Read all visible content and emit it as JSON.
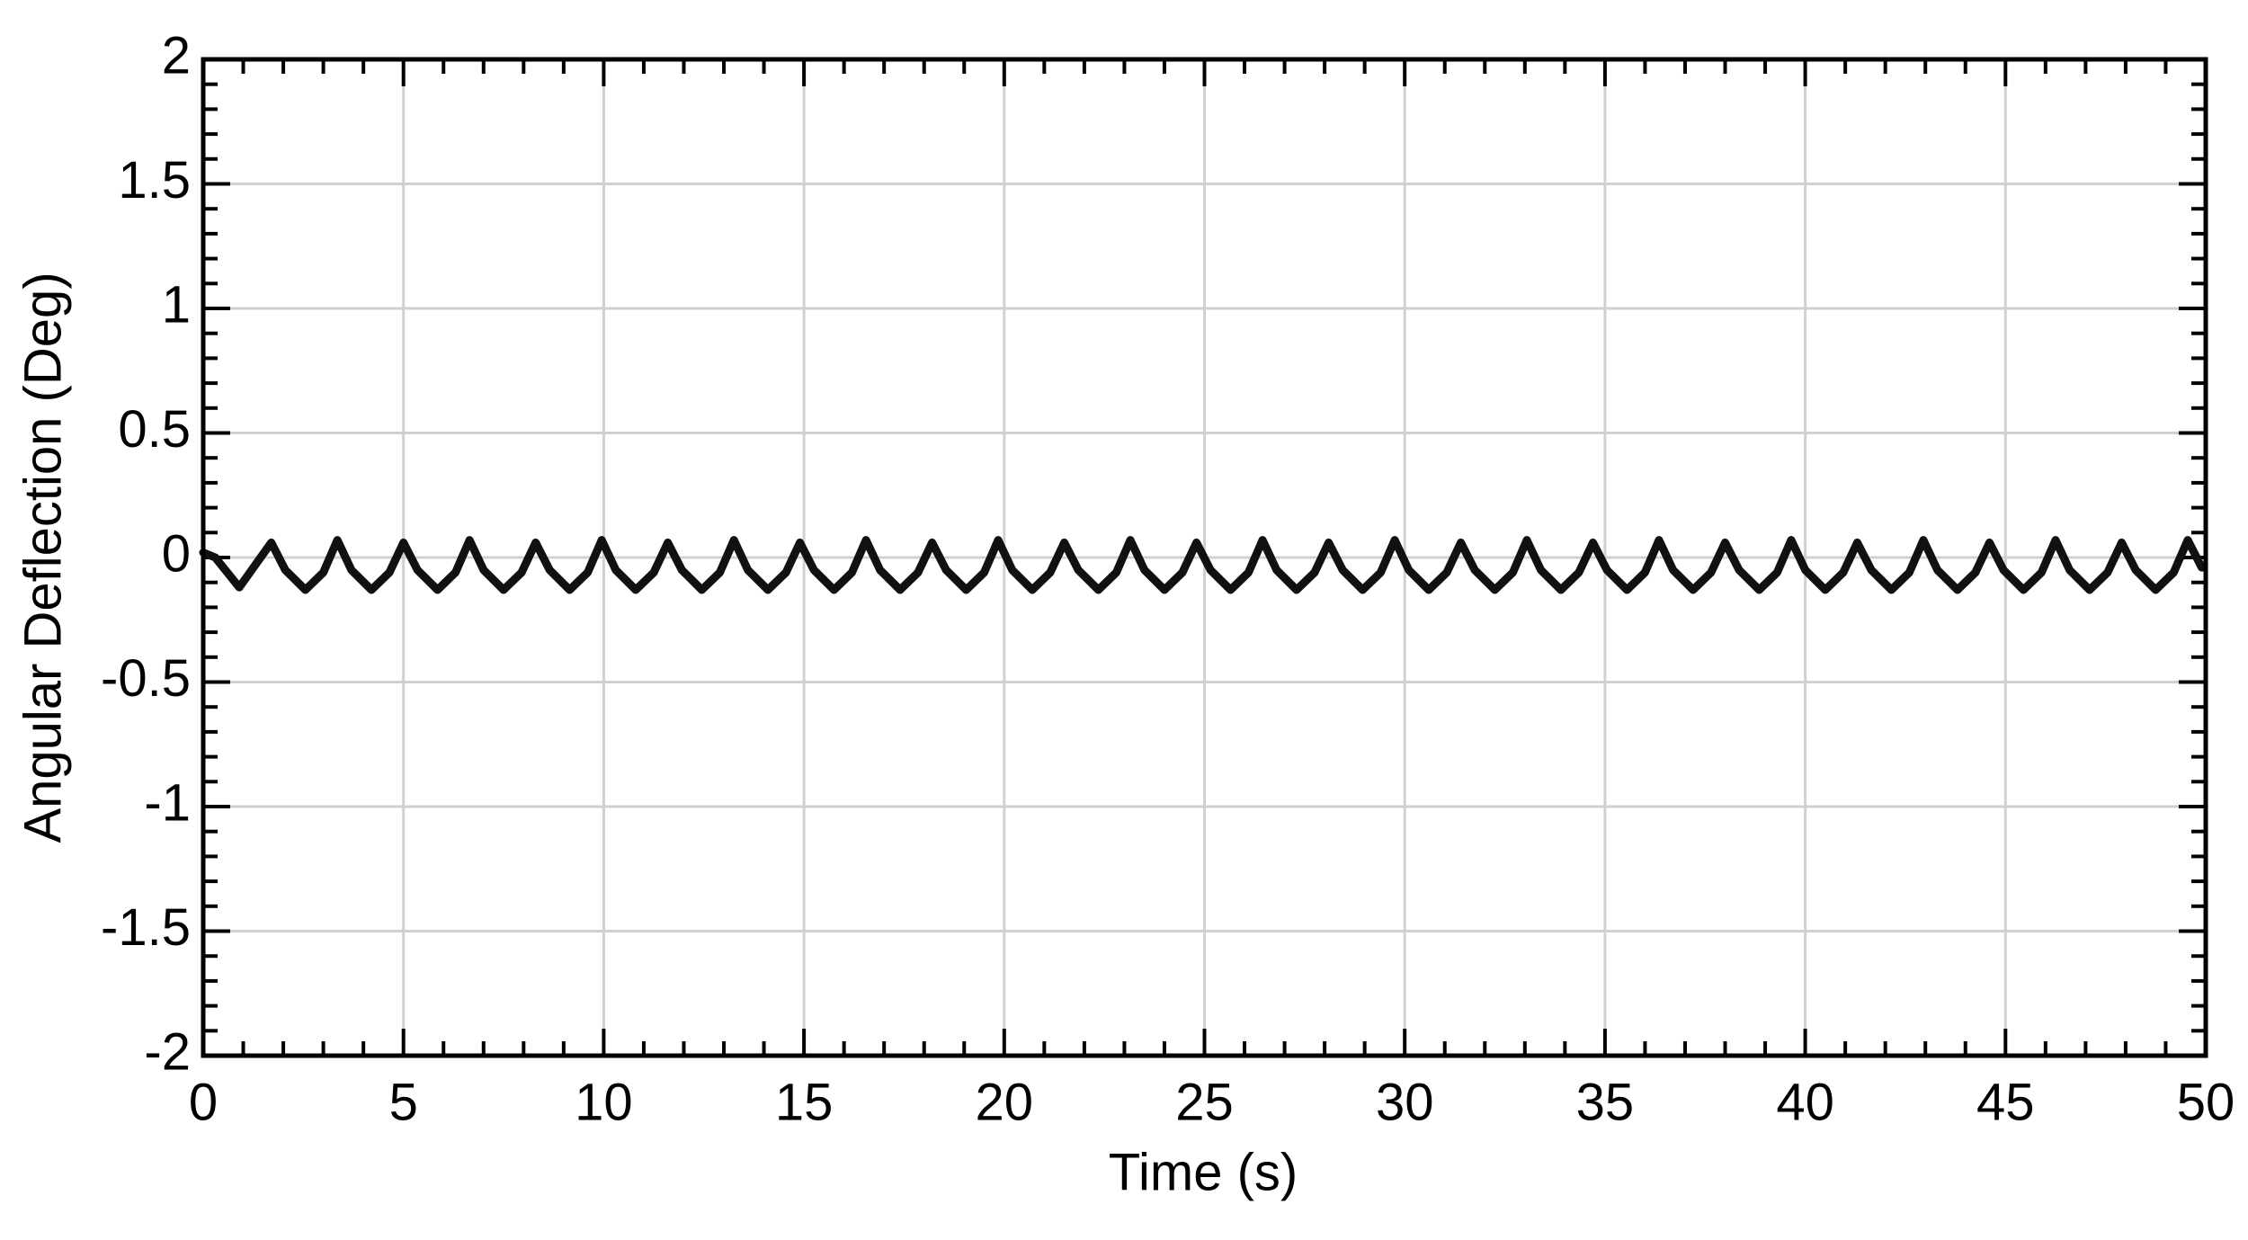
{
  "chart_data": {
    "type": "line",
    "xlabel": "Time (s)",
    "ylabel": "Angular Deflection (Deg)",
    "xlim": [
      0,
      50
    ],
    "ylim": [
      -2,
      2
    ],
    "xticks": [
      0,
      5,
      10,
      15,
      20,
      25,
      30,
      35,
      40,
      45,
      50
    ],
    "yticks": [
      -2,
      -1.5,
      -1,
      -0.5,
      0,
      0.5,
      1,
      1.5,
      2
    ],
    "grid": true,
    "series": [
      {
        "color": "#111111",
        "x": [
          0,
          0.3,
          0.9,
          1.7,
          2.05,
          2.55,
          3.0,
          3.35,
          3.7,
          4.2,
          4.65,
          5.0,
          5.35,
          5.85,
          6.3,
          6.65,
          7.0,
          7.5,
          7.95,
          8.3,
          8.65,
          9.15,
          9.6,
          9.95,
          10.3,
          10.8,
          11.25,
          11.6,
          11.95,
          12.45,
          12.9,
          13.25,
          13.6,
          14.1,
          14.55,
          14.9,
          15.25,
          15.75,
          16.2,
          16.55,
          16.9,
          17.4,
          17.85,
          18.2,
          18.55,
          19.05,
          19.5,
          19.85,
          20.2,
          20.7,
          21.15,
          21.5,
          21.85,
          22.35,
          22.8,
          23.15,
          23.5,
          24.0,
          24.45,
          24.8,
          25.15,
          25.65,
          26.1,
          26.45,
          26.8,
          27.3,
          27.75,
          28.1,
          28.45,
          28.95,
          29.4,
          29.75,
          30.1,
          30.6,
          31.05,
          31.4,
          31.75,
          32.25,
          32.7,
          33.05,
          33.4,
          33.9,
          34.35,
          34.7,
          35.05,
          35.55,
          36.0,
          36.35,
          36.7,
          37.2,
          37.65,
          38.0,
          38.35,
          38.85,
          39.3,
          39.65,
          40.0,
          40.5,
          40.95,
          41.3,
          41.65,
          42.15,
          42.6,
          42.95,
          43.3,
          43.8,
          44.25,
          44.6,
          44.95,
          45.45,
          45.9,
          46.25,
          46.6,
          47.1,
          47.55,
          47.9,
          48.25,
          48.75,
          49.2,
          49.55,
          49.9
        ],
        "values": [
          0.02,
          0.0,
          -0.12,
          0.06,
          -0.05,
          -0.13,
          -0.06,
          0.07,
          -0.05,
          -0.13,
          -0.06,
          0.06,
          -0.05,
          -0.13,
          -0.06,
          0.07,
          -0.05,
          -0.13,
          -0.06,
          0.06,
          -0.05,
          -0.13,
          -0.06,
          0.07,
          -0.05,
          -0.13,
          -0.06,
          0.06,
          -0.05,
          -0.13,
          -0.06,
          0.07,
          -0.05,
          -0.13,
          -0.06,
          0.06,
          -0.05,
          -0.13,
          -0.06,
          0.07,
          -0.05,
          -0.13,
          -0.06,
          0.06,
          -0.05,
          -0.13,
          -0.06,
          0.07,
          -0.05,
          -0.13,
          -0.06,
          0.06,
          -0.05,
          -0.13,
          -0.06,
          0.07,
          -0.05,
          -0.13,
          -0.06,
          0.06,
          -0.05,
          -0.13,
          -0.06,
          0.07,
          -0.05,
          -0.13,
          -0.06,
          0.06,
          -0.05,
          -0.13,
          -0.06,
          0.07,
          -0.05,
          -0.13,
          -0.06,
          0.06,
          -0.05,
          -0.13,
          -0.06,
          0.07,
          -0.05,
          -0.13,
          -0.06,
          0.06,
          -0.05,
          -0.13,
          -0.06,
          0.07,
          -0.05,
          -0.13,
          -0.06,
          0.06,
          -0.05,
          -0.13,
          -0.06,
          0.07,
          -0.05,
          -0.13,
          -0.06,
          0.06,
          -0.05,
          -0.13,
          -0.06,
          0.07,
          -0.05,
          -0.13,
          -0.06,
          0.06,
          -0.05,
          -0.13,
          -0.06,
          0.07,
          -0.05,
          -0.13,
          -0.06,
          0.06,
          -0.05,
          -0.13,
          -0.06,
          0.07,
          -0.04
        ]
      }
    ]
  }
}
